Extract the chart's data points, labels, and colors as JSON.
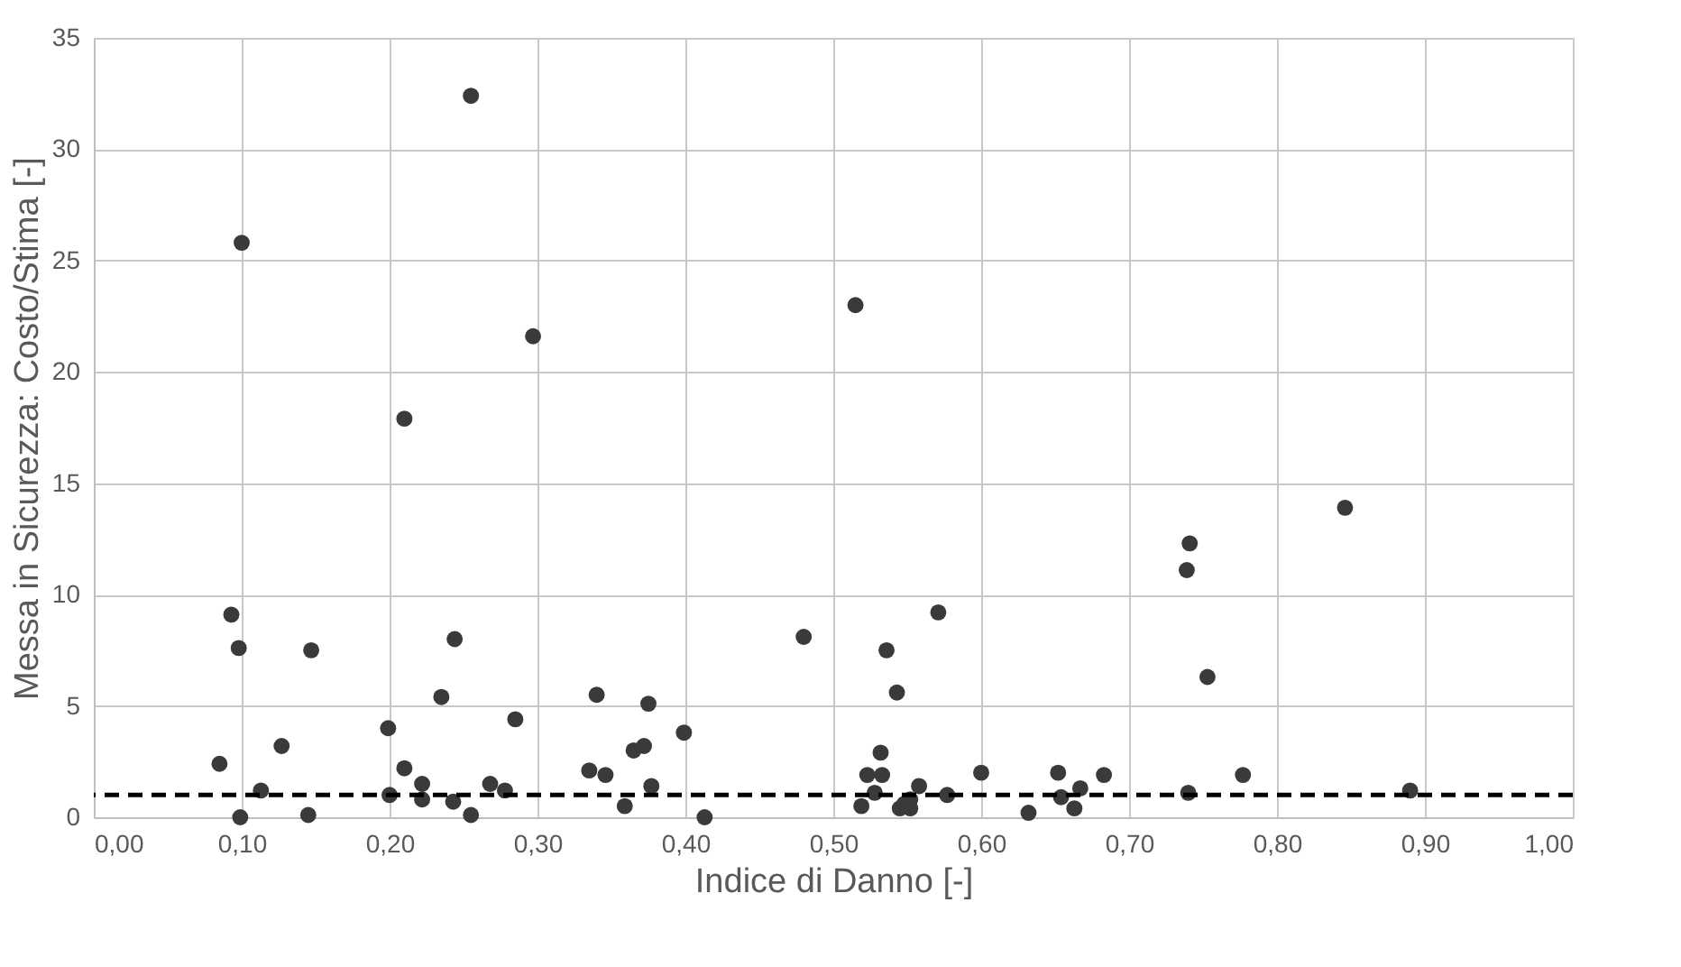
{
  "chart_data": {
    "type": "scatter",
    "xlabel": "Indice di Danno [-]",
    "ylabel": "Messa in Sicurezza: Costo/Stima [-]",
    "x": [
      0.085,
      0.093,
      0.098,
      0.099,
      0.1,
      0.113,
      0.127,
      0.145,
      0.147,
      0.199,
      0.2,
      0.21,
      0.21,
      0.222,
      0.222,
      0.235,
      0.243,
      0.244,
      0.255,
      0.255,
      0.268,
      0.278,
      0.285,
      0.297,
      0.335,
      0.34,
      0.346,
      0.359,
      0.365,
      0.372,
      0.375,
      0.377,
      0.399,
      0.413,
      0.48,
      0.515,
      0.519,
      0.523,
      0.528,
      0.533,
      0.532,
      0.536,
      0.543,
      0.545,
      0.548,
      0.552,
      0.552,
      0.558,
      0.571,
      0.577,
      0.6,
      0.632,
      0.652,
      0.654,
      0.663,
      0.667,
      0.683,
      0.739,
      0.741,
      0.74,
      0.753,
      0.777,
      0.846,
      0.89
    ],
    "series": [
      {
        "color": "#3a3a3a",
        "values": [
          2.4,
          9.1,
          7.6,
          0,
          25.8,
          1.2,
          3.2,
          0.1,
          7.5,
          4.0,
          1.0,
          17.9,
          2.2,
          1.5,
          0.8,
          5.4,
          0.7,
          8.0,
          0.1,
          32.4,
          1.5,
          1.2,
          4.4,
          21.6,
          2.1,
          5.5,
          1.9,
          0.5,
          3.0,
          3.2,
          5.1,
          1.4,
          3.8,
          0,
          8.1,
          23.0,
          0.5,
          1.9,
          1.1,
          1.9,
          2.9,
          7.5,
          5.6,
          0.4,
          0.6,
          0.4,
          0.8,
          1.4,
          9.2,
          1.0,
          2.0,
          0.2,
          2.0,
          0.9,
          0.4,
          1.3,
          1.9,
          11.1,
          12.3,
          1.1,
          6.3,
          1.9,
          13.9,
          1.2
        ]
      }
    ],
    "marker": "circle",
    "xlim": [
      0,
      1
    ],
    "ylim": [
      0,
      35
    ],
    "xticks": [
      {
        "value": 0,
        "label": "0,00"
      },
      {
        "value": 0.1,
        "label": "0,10"
      },
      {
        "value": 0.2,
        "label": "0,20"
      },
      {
        "value": 0.3,
        "label": "0,30"
      },
      {
        "value": 0.4,
        "label": "0,40"
      },
      {
        "value": 0.5,
        "label": "0,50"
      },
      {
        "value": 0.6,
        "label": "0,60"
      },
      {
        "value": 0.7,
        "label": "0,70"
      },
      {
        "value": 0.8,
        "label": "0,80"
      },
      {
        "value": 0.9,
        "label": "0,90"
      },
      {
        "value": 1,
        "label": "1,00"
      }
    ],
    "yticks": [
      0,
      5,
      10,
      15,
      20,
      25,
      30,
      35
    ],
    "grid": true,
    "ref_lines": [
      {
        "axis": "y",
        "value": 1,
        "color": "#000000",
        "line_style": "dashed"
      }
    ]
  }
}
